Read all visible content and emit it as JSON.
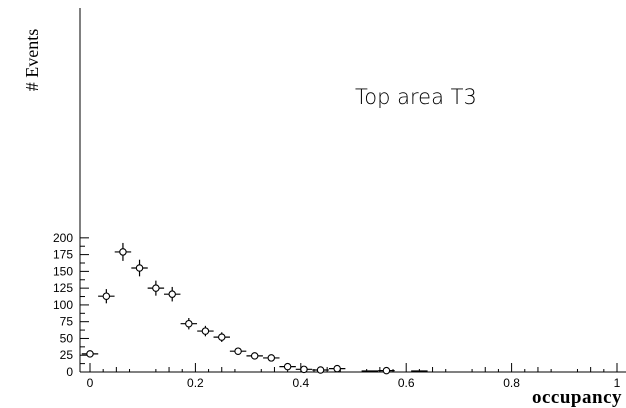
{
  "chart_data": {
    "type": "scatter",
    "xlabel": "occupancy",
    "ylabel": "# Events",
    "annotation": "Top area T3",
    "xlim": [
      0,
      1
    ],
    "ylim": [
      0,
      215
    ],
    "x_ticks": [
      0,
      0.2,
      0.4,
      0.6,
      0.8,
      1
    ],
    "x_tick_labels": [
      "0",
      "0.2",
      "0.4",
      "0.6",
      "0.8",
      "1"
    ],
    "y_ticks": [
      0,
      25,
      50,
      75,
      100,
      125,
      150,
      175,
      200
    ],
    "y_tick_labels": [
      "0",
      "25",
      "50",
      "75",
      "100",
      "125",
      "150",
      "175",
      "200"
    ],
    "grid": false,
    "series": [
      {
        "marker": "open-circle",
        "x": [
          0,
          0.031,
          0.0625,
          0.094,
          0.125,
          0.156,
          0.1875,
          0.219,
          0.25,
          0.281,
          0.3125,
          0.344,
          0.375,
          0.406,
          0.4375,
          0.469,
          0.5625
        ],
        "y": [
          27,
          113,
          179,
          155,
          125,
          116,
          72,
          61,
          52,
          31,
          24,
          21,
          8,
          4,
          3,
          5,
          2
        ],
        "y_err": [
          5.2,
          10.6,
          13.4,
          12.4,
          11.2,
          10.8,
          8.5,
          7.8,
          7.2,
          5.6,
          4.9,
          4.6,
          2.8,
          2,
          1.7,
          2.2,
          1.4
        ],
        "x_err": [
          0.0156,
          0.0156,
          0.0156,
          0.0156,
          0.0156,
          0.0156,
          0.0156,
          0.0156,
          0.0156,
          0.0156,
          0.0156,
          0.0156,
          0.0156,
          0.0156,
          0.0156,
          0.0156,
          0.0156
        ]
      }
    ],
    "zero_bins_x": [
      0.531,
      0.625
    ]
  }
}
